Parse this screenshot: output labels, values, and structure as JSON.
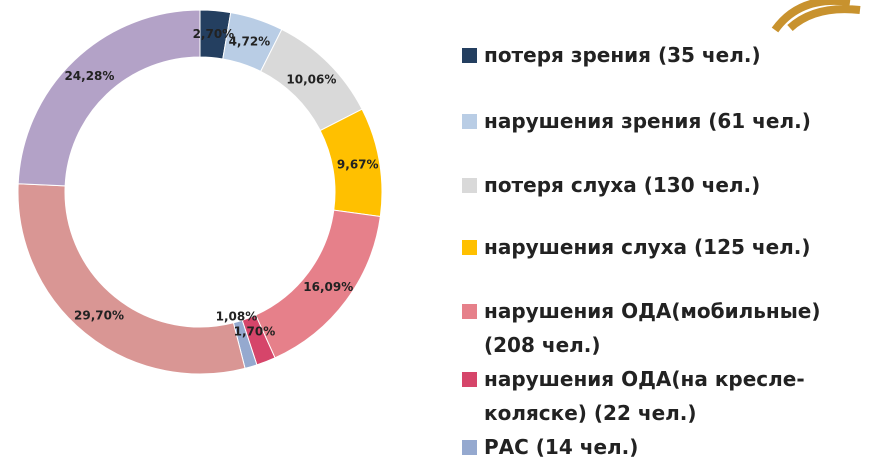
{
  "chart_data": {
    "type": "donut",
    "categories": [
      "потеря зрения (35 чел.)",
      "нарушения зрения (61 чел.)",
      "потеря слуха (130 чел.)",
      "нарушения слуха (125 чел.)",
      "нарушения ОДА(мобильные) (208 чел.)",
      "нарушения ОДА(на кресле-коляске) (22 чел.)",
      "РАС (14 чел.)",
      null,
      null
    ],
    "values": [
      2.7,
      4.72,
      10.06,
      9.67,
      16.09,
      1.7,
      1.08,
      29.7,
      24.28
    ],
    "value_labels": [
      "2,70%",
      "4,72%",
      "10,06%",
      "9,67%",
      "16,09%",
      "1,70%",
      "1,08%",
      "29,70%",
      "24,28%"
    ],
    "colors": [
      "#243f60",
      "#b9cde5",
      "#d9d9d9",
      "#ffc000",
      "#e6808a",
      "#d6456a",
      "#95a9cf",
      "#d99694",
      "#b3a2c7"
    ]
  }
}
